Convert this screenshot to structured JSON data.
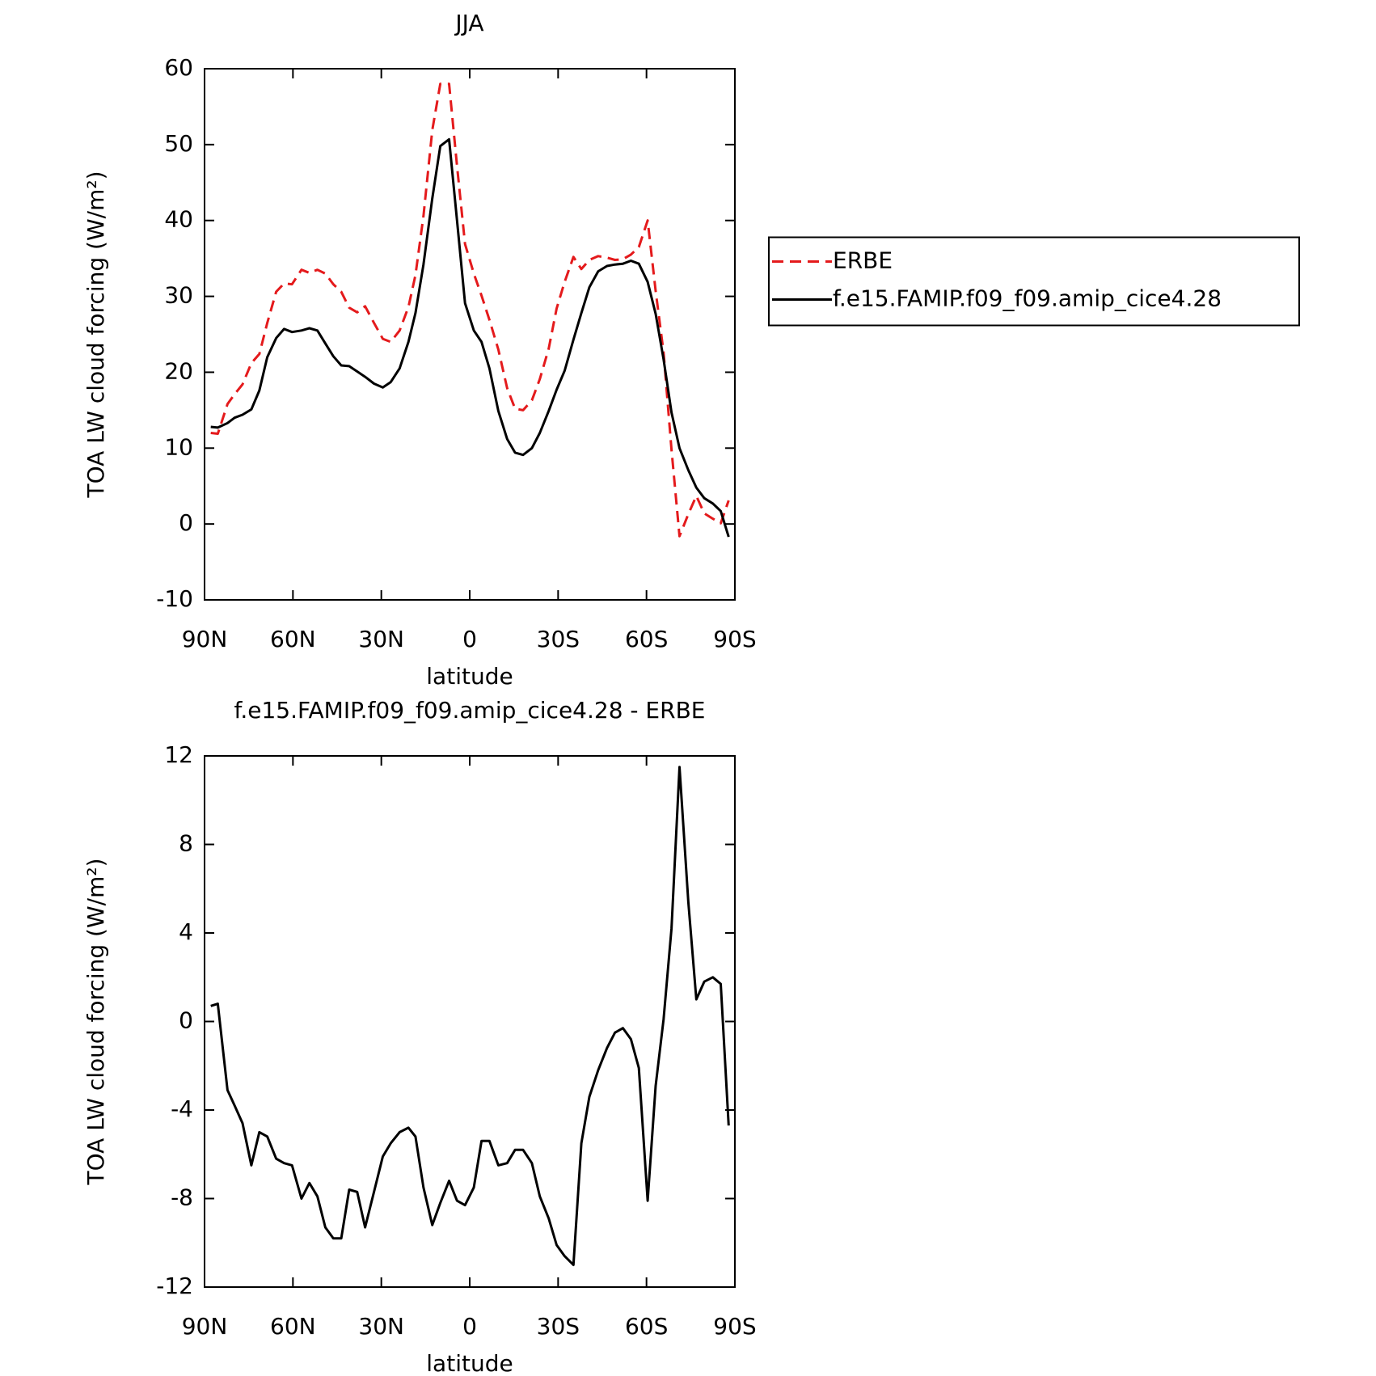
{
  "chart_data": [
    {
      "type": "line",
      "title": "JJA",
      "xlabel": "latitude",
      "ylabel": "TOA LW cloud forcing (W/m²)",
      "x": [
        87.9,
        85.5,
        82.2,
        79.8,
        77.1,
        74.1,
        71.4,
        68.7,
        65.7,
        63.0,
        60.3,
        57.1,
        54.4,
        51.7,
        49.0,
        46.3,
        43.6,
        40.9,
        38.2,
        35.5,
        32.5,
        29.5,
        26.8,
        23.8,
        20.8,
        18.4,
        15.7,
        12.7,
        10.0,
        7.0,
        4.3,
        1.6,
        -1.4,
        -4.0,
        -6.7,
        -9.7,
        -12.7,
        -15.4,
        -18.1,
        -21.1,
        -23.8,
        -26.8,
        -29.5,
        -32.2,
        -35.2,
        -37.9,
        -40.6,
        -43.6,
        -46.6,
        -49.3,
        -52.0,
        -54.7,
        -57.4,
        -60.4,
        -63.1,
        -65.8,
        -68.5,
        -71.2,
        -74.2,
        -76.9,
        -79.6,
        -82.5,
        -85.2,
        -87.9
      ],
      "series": [
        {
          "name": "ERBE",
          "color": "#e41a1c",
          "line_style": "dashed",
          "values": [
            12.0,
            11.9,
            15.8,
            17.1,
            18.4,
            21.2,
            22.4,
            26.5,
            30.6,
            31.7,
            31.6,
            33.5,
            33.1,
            33.5,
            33.0,
            31.6,
            30.6,
            28.5,
            27.9,
            28.7,
            26.5,
            24.4,
            24.0,
            25.5,
            28.6,
            32.8,
            40.6,
            51.9,
            58.0,
            58.0,
            47.2,
            36.9,
            33.0,
            30.1,
            26.9,
            23.0,
            17.9,
            15.2,
            15.0,
            16.3,
            19.1,
            23.1,
            28.4,
            31.9,
            35.2,
            33.6,
            34.8,
            35.3,
            35.1,
            34.8,
            34.9,
            35.5,
            36.5,
            40.0,
            30.7,
            22.6,
            9.8,
            -1.6,
            1.3,
            3.7,
            1.4,
            0.7,
            0.1,
            3.1
          ]
        },
        {
          "name": "f.e15.FAMIP.f09_f09.amip_cice4.28",
          "color": "#000000",
          "line_style": "solid",
          "values": [
            12.8,
            12.7,
            13.3,
            14.0,
            14.4,
            15.1,
            17.6,
            22.0,
            24.5,
            25.7,
            25.3,
            25.5,
            25.8,
            25.5,
            23.8,
            22.1,
            20.9,
            20.8,
            20.1,
            19.4,
            18.5,
            18.0,
            18.7,
            20.5,
            24.0,
            27.8,
            34.2,
            42.9,
            49.8,
            50.7,
            40.0,
            29.1,
            25.5,
            24.0,
            20.5,
            14.9,
            11.2,
            9.4,
            9.1,
            10.0,
            12.0,
            14.9,
            17.7,
            20.2,
            24.3,
            27.8,
            31.2,
            33.3,
            34.0,
            34.2,
            34.3,
            34.7,
            34.3,
            31.9,
            27.7,
            21.7,
            14.7,
            10.0,
            7.1,
            4.8,
            3.4,
            2.7,
            1.7,
            -1.7
          ]
        }
      ],
      "xlim": [
        90,
        -90
      ],
      "xticks": [
        {
          "value": 90,
          "label": "90N"
        },
        {
          "value": 60,
          "label": "60N"
        },
        {
          "value": 30,
          "label": "30N"
        },
        0,
        {
          "value": -30,
          "label": "30S"
        },
        {
          "value": -60,
          "label": "60S"
        },
        {
          "value": -90,
          "label": "90S"
        }
      ],
      "ylim": [
        -10,
        60
      ],
      "yticks": [
        -10,
        0,
        10,
        20,
        30,
        40,
        50,
        60
      ],
      "legend": "right"
    },
    {
      "type": "line",
      "title": "f.e15.FAMIP.f09_f09.amip_cice4.28 - ERBE",
      "xlabel": "latitude",
      "ylabel": "TOA LW cloud forcing (W/m²)",
      "x": [
        87.9,
        85.5,
        82.2,
        79.8,
        77.1,
        74.1,
        71.4,
        68.7,
        65.7,
        63.0,
        60.3,
        57.1,
        54.4,
        51.7,
        49.0,
        46.3,
        43.6,
        40.9,
        38.2,
        35.5,
        32.5,
        29.5,
        26.8,
        23.8,
        20.8,
        18.4,
        15.7,
        12.7,
        10.0,
        7.0,
        4.3,
        1.6,
        -1.4,
        -4.0,
        -6.7,
        -9.7,
        -12.7,
        -15.4,
        -18.1,
        -21.1,
        -23.8,
        -26.8,
        -29.5,
        -32.2,
        -35.2,
        -37.9,
        -40.6,
        -43.6,
        -46.6,
        -49.3,
        -52.0,
        -54.7,
        -57.4,
        -60.4,
        -63.1,
        -65.8,
        -68.5,
        -71.2,
        -74.2,
        -76.9,
        -79.6,
        -82.5,
        -85.2,
        -87.9
      ],
      "values": [
        0.7,
        0.8,
        -3.1,
        -3.8,
        -4.6,
        -6.5,
        -5.0,
        -5.2,
        -6.2,
        -6.4,
        -6.5,
        -8.0,
        -7.3,
        -7.9,
        -9.3,
        -9.8,
        -9.8,
        -7.6,
        -7.7,
        -9.3,
        -7.7,
        -6.1,
        -5.5,
        -5.0,
        -4.8,
        -5.2,
        -7.5,
        -9.2,
        -8.2,
        -7.2,
        -8.1,
        -8.3,
        -7.5,
        -5.4,
        -5.4,
        -6.5,
        -6.4,
        -5.8,
        -5.8,
        -6.4,
        -7.9,
        -8.9,
        -10.1,
        -10.6,
        -11.0,
        -5.5,
        -3.4,
        -2.2,
        -1.2,
        -0.5,
        -0.3,
        -0.8,
        -2.1,
        -8.1,
        -2.9,
        0.1,
        4.2,
        11.5,
        5.4,
        1.0,
        1.8,
        2.0,
        1.7,
        -4.7
      ],
      "color": "#000000",
      "xlim": [
        90,
        -90
      ],
      "xticks": [
        {
          "value": 90,
          "label": "90N"
        },
        {
          "value": 60,
          "label": "60N"
        },
        {
          "value": 30,
          "label": "30N"
        },
        0,
        {
          "value": -30,
          "label": "30S"
        },
        {
          "value": -60,
          "label": "60S"
        },
        {
          "value": -90,
          "label": "90S"
        }
      ],
      "ylim": [
        -12,
        12
      ],
      "yticks": [
        -12,
        -8,
        -4,
        0,
        4,
        8,
        12
      ]
    }
  ]
}
